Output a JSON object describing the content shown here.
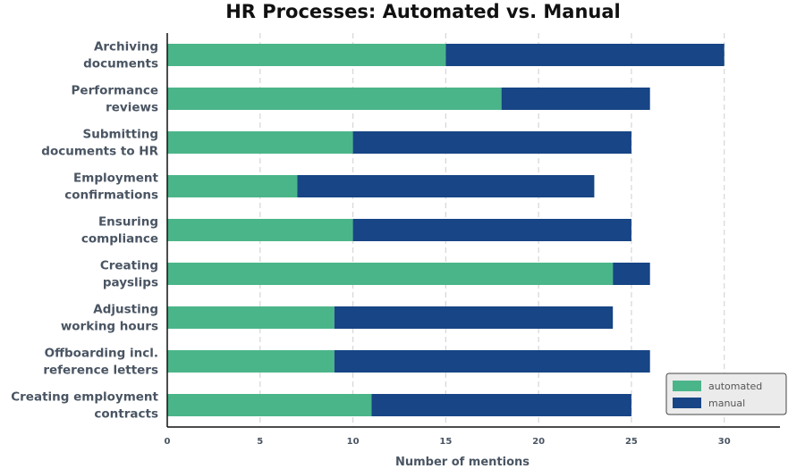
{
  "chart_data": {
    "type": "bar",
    "orientation": "horizontal",
    "stacked": true,
    "title": "HR Processes: Automated vs. Manual",
    "xlabel": "Number of mentions",
    "ylabel": "",
    "xlim": [
      0,
      33
    ],
    "xticks": [
      0,
      5,
      10,
      15,
      20,
      25,
      30
    ],
    "grid": "vertical-dashed",
    "legend_position": "bottom-right",
    "categories": [
      [
        "Archiving",
        "documents"
      ],
      [
        "Performance",
        "reviews"
      ],
      [
        "Submitting",
        "documents to HR"
      ],
      [
        "Employment",
        "confirmations"
      ],
      [
        "Ensuring",
        "compliance"
      ],
      [
        "Creating",
        "payslips"
      ],
      [
        "Adjusting",
        "working hours"
      ],
      [
        "Offboarding incl.",
        "reference letters"
      ],
      [
        "Creating employment",
        "contracts"
      ]
    ],
    "series": [
      {
        "name": "automated",
        "color": "#4bb58a",
        "values": [
          15,
          18,
          10,
          7,
          10,
          24,
          9,
          9,
          11
        ]
      },
      {
        "name": "manual",
        "color": "#174585",
        "values": [
          15,
          8,
          15,
          16,
          15,
          2,
          15,
          17,
          14
        ]
      }
    ]
  }
}
